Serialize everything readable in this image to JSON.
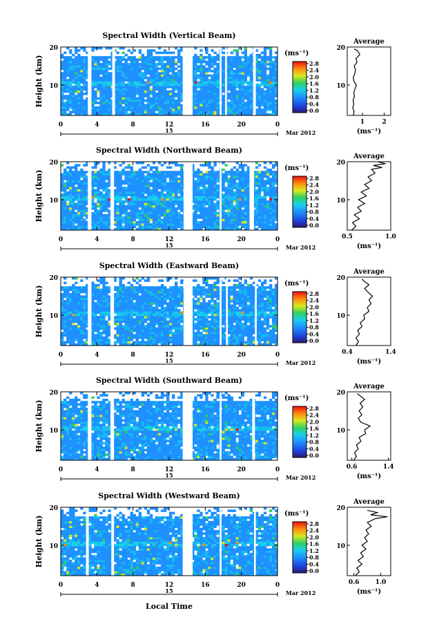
{
  "chart_data": [
    {
      "type": "heatmap",
      "title": "Spectral Width (Vertical Beam)",
      "ylabel": "Height (km)",
      "xticks": [
        "0",
        "4",
        "8",
        "12",
        "16",
        "20",
        "0"
      ],
      "yticks": [
        "10",
        "20"
      ],
      "date_mark": "15",
      "date_label": "Mar 2012",
      "colorbar_unit": "(ms⁻¹)",
      "colorbar_ticks": [
        "0.0",
        "0.4",
        "0.8",
        "1.2",
        "1.6",
        "2.0",
        "2.4",
        "2.8"
      ],
      "x_range_hours": [
        0,
        24
      ],
      "y_range_km": [
        2,
        20
      ],
      "gaps_hours": [
        [
          3.0,
          3.4
        ],
        [
          5.7,
          6.0
        ],
        [
          13.5,
          14.6
        ],
        [
          17.6,
          17.8
        ],
        [
          18.2,
          18.4
        ],
        [
          21.3,
          21.6
        ]
      ],
      "average": {
        "title": "Average",
        "xlabel": "(ms⁻¹)",
        "xticks": [
          "1",
          "2"
        ],
        "xlim": [
          0.3,
          2.3
        ],
        "yticks": [
          "10",
          "20"
        ],
        "profile": [
          [
            2,
            0.58
          ],
          [
            3,
            0.62
          ],
          [
            4,
            0.55
          ],
          [
            5,
            0.6
          ],
          [
            6,
            0.57
          ],
          [
            7,
            0.63
          ],
          [
            8,
            0.6
          ],
          [
            9,
            0.66
          ],
          [
            10,
            0.72
          ],
          [
            11,
            0.6
          ],
          [
            12,
            0.58
          ],
          [
            13,
            0.65
          ],
          [
            14,
            0.68
          ],
          [
            15,
            0.62
          ],
          [
            16,
            0.75
          ],
          [
            17,
            0.7
          ],
          [
            18,
            0.88
          ],
          [
            19,
            0.78
          ],
          [
            19.5,
            0.62
          ]
        ]
      }
    },
    {
      "type": "heatmap",
      "title": "Spectral Width (Northward Beam)",
      "ylabel": "Height (km)",
      "xticks": [
        "0",
        "4",
        "8",
        "12",
        "16",
        "20",
        "0"
      ],
      "yticks": [
        "10",
        "20"
      ],
      "date_mark": "15",
      "date_label": "Mar 2012",
      "colorbar_unit": "(ms⁻¹)",
      "colorbar_ticks": [
        "0.0",
        "0.4",
        "0.8",
        "1.2",
        "1.6",
        "2.0",
        "2.4",
        "2.8"
      ],
      "x_range_hours": [
        0,
        24
      ],
      "y_range_km": [
        2,
        20
      ],
      "gaps_hours": [
        [
          3.0,
          3.4
        ],
        [
          5.5,
          5.9
        ],
        [
          13.6,
          14.6
        ],
        [
          17.6,
          17.8
        ],
        [
          20.9,
          21.4
        ]
      ],
      "average": {
        "title": "Average",
        "xlabel": "(ms⁻¹)",
        "xticks": [
          "0.5",
          "1.0"
        ],
        "xlim": [
          0.5,
          1.0
        ],
        "yticks": [
          "10",
          "20"
        ],
        "profile": [
          [
            2,
            0.55
          ],
          [
            3,
            0.6
          ],
          [
            4,
            0.56
          ],
          [
            5,
            0.64
          ],
          [
            6,
            0.58
          ],
          [
            7,
            0.66
          ],
          [
            8,
            0.62
          ],
          [
            9,
            0.7
          ],
          [
            10,
            0.63
          ],
          [
            11,
            0.72
          ],
          [
            12,
            0.66
          ],
          [
            13,
            0.75
          ],
          [
            14,
            0.7
          ],
          [
            15,
            0.78
          ],
          [
            16,
            0.74
          ],
          [
            17,
            0.82
          ],
          [
            18,
            0.78
          ],
          [
            18.5,
            0.9
          ],
          [
            19,
            0.8
          ],
          [
            19.5,
            0.94
          ],
          [
            20,
            0.85
          ]
        ]
      }
    },
    {
      "type": "heatmap",
      "title": "Spectral Width (Eastward Beam)",
      "ylabel": "Height (km)",
      "xticks": [
        "0",
        "4",
        "8",
        "12",
        "16",
        "20",
        "0"
      ],
      "yticks": [
        "10",
        "20"
      ],
      "date_mark": "15",
      "date_label": "Mar 2012",
      "colorbar_unit": "(ms⁻¹)",
      "colorbar_ticks": [
        "0.0",
        "0.4",
        "0.8",
        "1.2",
        "1.6",
        "2.0",
        "2.4",
        "2.8"
      ],
      "x_range_hours": [
        0,
        24
      ],
      "y_range_km": [
        2,
        20
      ],
      "gaps_hours": [
        [
          3.0,
          3.4
        ],
        [
          5.5,
          5.9
        ],
        [
          13.6,
          14.6
        ],
        [
          17.6,
          17.8
        ],
        [
          18.3,
          18.5
        ],
        [
          21.5,
          21.7
        ]
      ],
      "average": {
        "title": "Average",
        "xlabel": "(ms⁻¹)",
        "xticks": [
          "0.4",
          "1.4"
        ],
        "xlim": [
          0.4,
          1.4
        ],
        "yticks": [
          "10",
          "20"
        ],
        "profile": [
          [
            2,
            0.6
          ],
          [
            3,
            0.66
          ],
          [
            4,
            0.6
          ],
          [
            5,
            0.68
          ],
          [
            6,
            0.64
          ],
          [
            7,
            0.74
          ],
          [
            8,
            0.7
          ],
          [
            9,
            0.8
          ],
          [
            10,
            0.78
          ],
          [
            11,
            0.9
          ],
          [
            12,
            0.86
          ],
          [
            13,
            0.95
          ],
          [
            14,
            0.9
          ],
          [
            15,
            0.98
          ],
          [
            16,
            0.88
          ],
          [
            17,
            0.8
          ],
          [
            18,
            0.9
          ],
          [
            18.8,
            0.8
          ],
          [
            19.5,
            0.74
          ]
        ]
      }
    },
    {
      "type": "heatmap",
      "title": "Spectral Width (Southward Beam)",
      "ylabel": "Height (km)",
      "xticks": [
        "0",
        "4",
        "8",
        "12",
        "16",
        "20",
        "0"
      ],
      "yticks": [
        "10",
        "20"
      ],
      "date_mark": "15",
      "date_label": "Mar 2012",
      "colorbar_unit": "(ms⁻¹)",
      "colorbar_ticks": [
        "0.0",
        "0.4",
        "0.8",
        "1.2",
        "1.6",
        "2.0",
        "2.4",
        "2.8"
      ],
      "x_range_hours": [
        0,
        24
      ],
      "y_range_km": [
        2,
        20
      ],
      "gaps_hours": [
        [
          3.0,
          3.4
        ],
        [
          5.5,
          5.9
        ],
        [
          13.5,
          14.6
        ],
        [
          17.6,
          17.8
        ],
        [
          21.2,
          21.5
        ]
      ],
      "average": {
        "title": "Average",
        "xlabel": "(ms⁻¹)",
        "xticks": [
          "0.6",
          "1.4"
        ],
        "xlim": [
          0.5,
          1.45
        ],
        "yticks": [
          "10",
          "20"
        ],
        "profile": [
          [
            2,
            0.64
          ],
          [
            3,
            0.7
          ],
          [
            4,
            0.66
          ],
          [
            5,
            0.74
          ],
          [
            6,
            0.7
          ],
          [
            7,
            0.8
          ],
          [
            8,
            0.76
          ],
          [
            9,
            0.9
          ],
          [
            10,
            0.88
          ],
          [
            11,
            1.0
          ],
          [
            12,
            0.8
          ],
          [
            13,
            0.74
          ],
          [
            14,
            0.82
          ],
          [
            15,
            0.76
          ],
          [
            16,
            0.84
          ],
          [
            17,
            0.78
          ],
          [
            18,
            0.88
          ],
          [
            18.8,
            0.8
          ],
          [
            19.5,
            0.72
          ]
        ]
      }
    },
    {
      "type": "heatmap",
      "title": "Spectral Width (Westward Beam)",
      "ylabel": "Height (km)",
      "xlabel": "Local Time",
      "xticks": [
        "0",
        "4",
        "8",
        "12",
        "16",
        "20",
        "0"
      ],
      "yticks": [
        "10",
        "20"
      ],
      "date_mark": "15",
      "date_label": "Mar 2012",
      "colorbar_unit": "(ms⁻¹)",
      "colorbar_ticks": [
        "0.0",
        "0.4",
        "0.8",
        "1.2",
        "1.6",
        "2.0",
        "2.4",
        "2.8"
      ],
      "x_range_hours": [
        0,
        24
      ],
      "y_range_km": [
        2,
        20
      ],
      "gaps_hours": [
        [
          2.8,
          3.1
        ],
        [
          5.6,
          5.9
        ],
        [
          13.5,
          14.6
        ],
        [
          17.6,
          17.8
        ],
        [
          21.4,
          21.6
        ]
      ],
      "average": {
        "title": "Average",
        "xlabel": "(ms⁻¹)",
        "xticks": [
          "0.6",
          "1.0"
        ],
        "xlim": [
          0.5,
          1.15
        ],
        "yticks": [
          "10",
          "20"
        ],
        "profile": [
          [
            2,
            0.62
          ],
          [
            3,
            0.68
          ],
          [
            4,
            0.64
          ],
          [
            5,
            0.72
          ],
          [
            6,
            0.66
          ],
          [
            7,
            0.74
          ],
          [
            8,
            0.7
          ],
          [
            9,
            0.78
          ],
          [
            10,
            0.72
          ],
          [
            11,
            0.8
          ],
          [
            12,
            0.76
          ],
          [
            13,
            0.82
          ],
          [
            14,
            0.78
          ],
          [
            15,
            0.86
          ],
          [
            16,
            0.8
          ],
          [
            17,
            0.92
          ],
          [
            17.5,
            1.1
          ],
          [
            18,
            0.85
          ],
          [
            18.6,
            0.95
          ],
          [
            19.2,
            0.8
          ]
        ]
      }
    }
  ]
}
